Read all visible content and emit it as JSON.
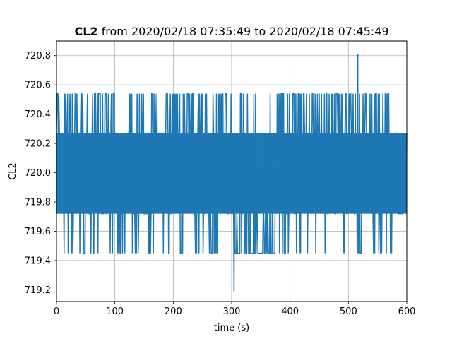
{
  "chart_data": {
    "type": "line",
    "title": {
      "bold": "CL2",
      "rest": " from 2020/02/18 07:35:49 to 2020/02/18 07:45:49"
    },
    "xlabel": "time (s)",
    "ylabel": "CL2",
    "xlim": [
      0,
      600
    ],
    "ylim": [
      719.12,
      720.9
    ],
    "xticks": [
      0,
      100,
      200,
      300,
      400,
      500,
      600
    ],
    "yticks": [
      719.2,
      719.4,
      719.6,
      719.8,
      720.0,
      720.2,
      720.4,
      720.6,
      720.8
    ],
    "ytick_labels": [
      "719.2",
      "719.4",
      "719.6",
      "719.8",
      "720.0",
      "720.2",
      "720.4",
      "720.6",
      "720.8"
    ],
    "grid": true,
    "series_color": "#1f77b4",
    "series": [
      {
        "x_range": [
          0,
          600
        ],
        "sample_interval_s": 1,
        "levels": [
          719.45,
          719.72,
          720.0,
          720.27,
          720.54
        ],
        "core_band": [
          719.72,
          720.27
        ],
        "upper_excursion_spans": [
          [
            1,
            4
          ],
          [
            14,
            150
          ],
          [
            158,
            180
          ],
          [
            185,
            292
          ],
          [
            298,
            305
          ],
          [
            312,
            322
          ],
          [
            327,
            332
          ],
          [
            338,
            342
          ],
          [
            366,
            368
          ],
          [
            378,
            575
          ]
        ],
        "lower_excursion_spans": [
          [
            10,
            30
          ],
          [
            38,
            52
          ],
          [
            58,
            76
          ],
          [
            82,
            96
          ],
          [
            105,
            118
          ],
          [
            126,
            146
          ],
          [
            156,
            168
          ],
          [
            176,
            186
          ],
          [
            192,
            206
          ],
          [
            212,
            232
          ],
          [
            238,
            252
          ],
          [
            260,
            280
          ],
          [
            292,
            305
          ],
          [
            305,
            375
          ],
          [
            382,
            398
          ],
          [
            404,
            418
          ],
          [
            428,
            446
          ],
          [
            452,
            460
          ],
          [
            490,
            496
          ],
          [
            512,
            522
          ],
          [
            540,
            560
          ],
          [
            565,
            575
          ]
        ],
        "dense_low_span": [
          305,
          375
        ],
        "spikes": [
          {
            "x": 304,
            "y": 719.19
          },
          {
            "x": 516,
            "y": 720.81
          }
        ]
      }
    ]
  }
}
